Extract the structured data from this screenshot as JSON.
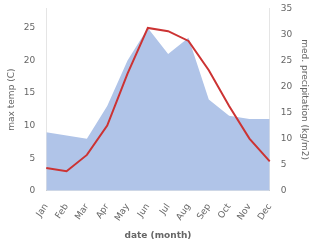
{
  "chart_data": {
    "type": "line",
    "categories": [
      "Jan",
      "Feb",
      "Mar",
      "Apr",
      "May",
      "Jun",
      "Jul",
      "Aug",
      "Sep",
      "Oct",
      "Nov",
      "Dec"
    ],
    "xlabel": "date (month)",
    "ylabel": "max temp (C)",
    "y2label": "med. precipitation (kg/m2)",
    "ylim": [
      0,
      28
    ],
    "yticks": [
      0,
      5,
      10,
      15,
      20,
      25
    ],
    "y2lim": [
      0,
      35
    ],
    "y2ticks": [
      0,
      5,
      10,
      15,
      20,
      25,
      30,
      35
    ],
    "grid": false,
    "series": [
      {
        "type": "area",
        "color": "#b0c4e8",
        "values": [
          9.0,
          8.5,
          8.0,
          13.0,
          20.0,
          25.0,
          21.0,
          23.5,
          14.0,
          11.5,
          11.0,
          11.0
        ]
      },
      {
        "type": "line",
        "color": "#cc3333",
        "values": [
          3.5,
          3.0,
          5.5,
          10.0,
          18.0,
          25.0,
          24.5,
          23.0,
          18.5,
          13.0,
          8.0,
          4.5
        ]
      }
    ]
  }
}
